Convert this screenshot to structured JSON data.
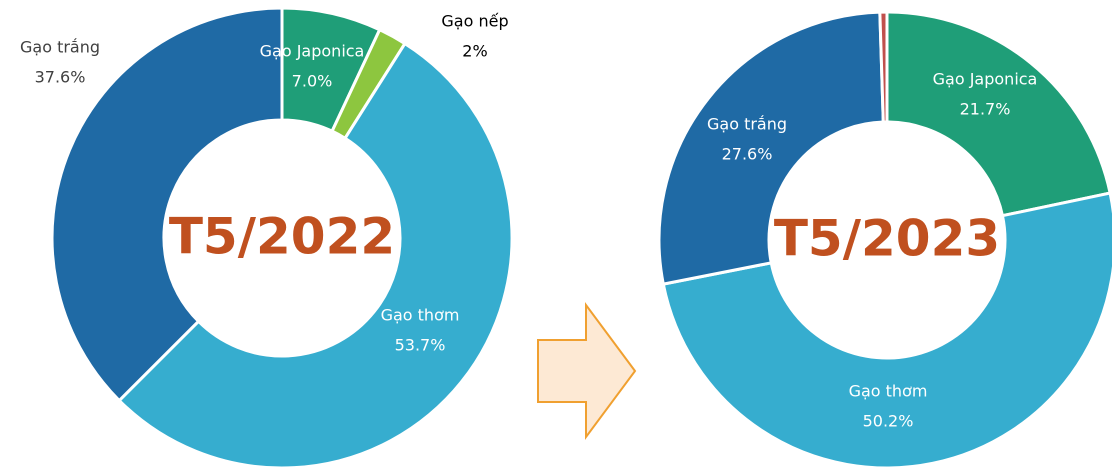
{
  "chart_data": [
    {
      "type": "donut",
      "title": "T5/2022",
      "categories": [
        "Gạo Japonica",
        "Gạo nếp",
        "Gạo thơm",
        "Gạo trắng"
      ],
      "values": [
        7.0,
        2,
        53.7,
        37.6
      ],
      "value_labels": [
        "7.0%",
        "2%",
        "53.7%",
        "37.6%"
      ],
      "colors": [
        "#1f9e78",
        "#8dc63f",
        "#36adcf",
        "#1f6aa5"
      ]
    },
    {
      "type": "donut",
      "title": "T5/2023",
      "categories": [
        "Gạo Japonica",
        "Gạo thơm",
        "Gạo trắng",
        null
      ],
      "values": [
        21.7,
        50.2,
        27.6,
        0.5
      ],
      "value_labels": [
        "21.7%",
        "50.2%",
        "27.6%",
        null
      ],
      "colors": [
        "#1f9e78",
        "#36adcf",
        "#1f6aa5",
        "#c0504d"
      ]
    }
  ]
}
